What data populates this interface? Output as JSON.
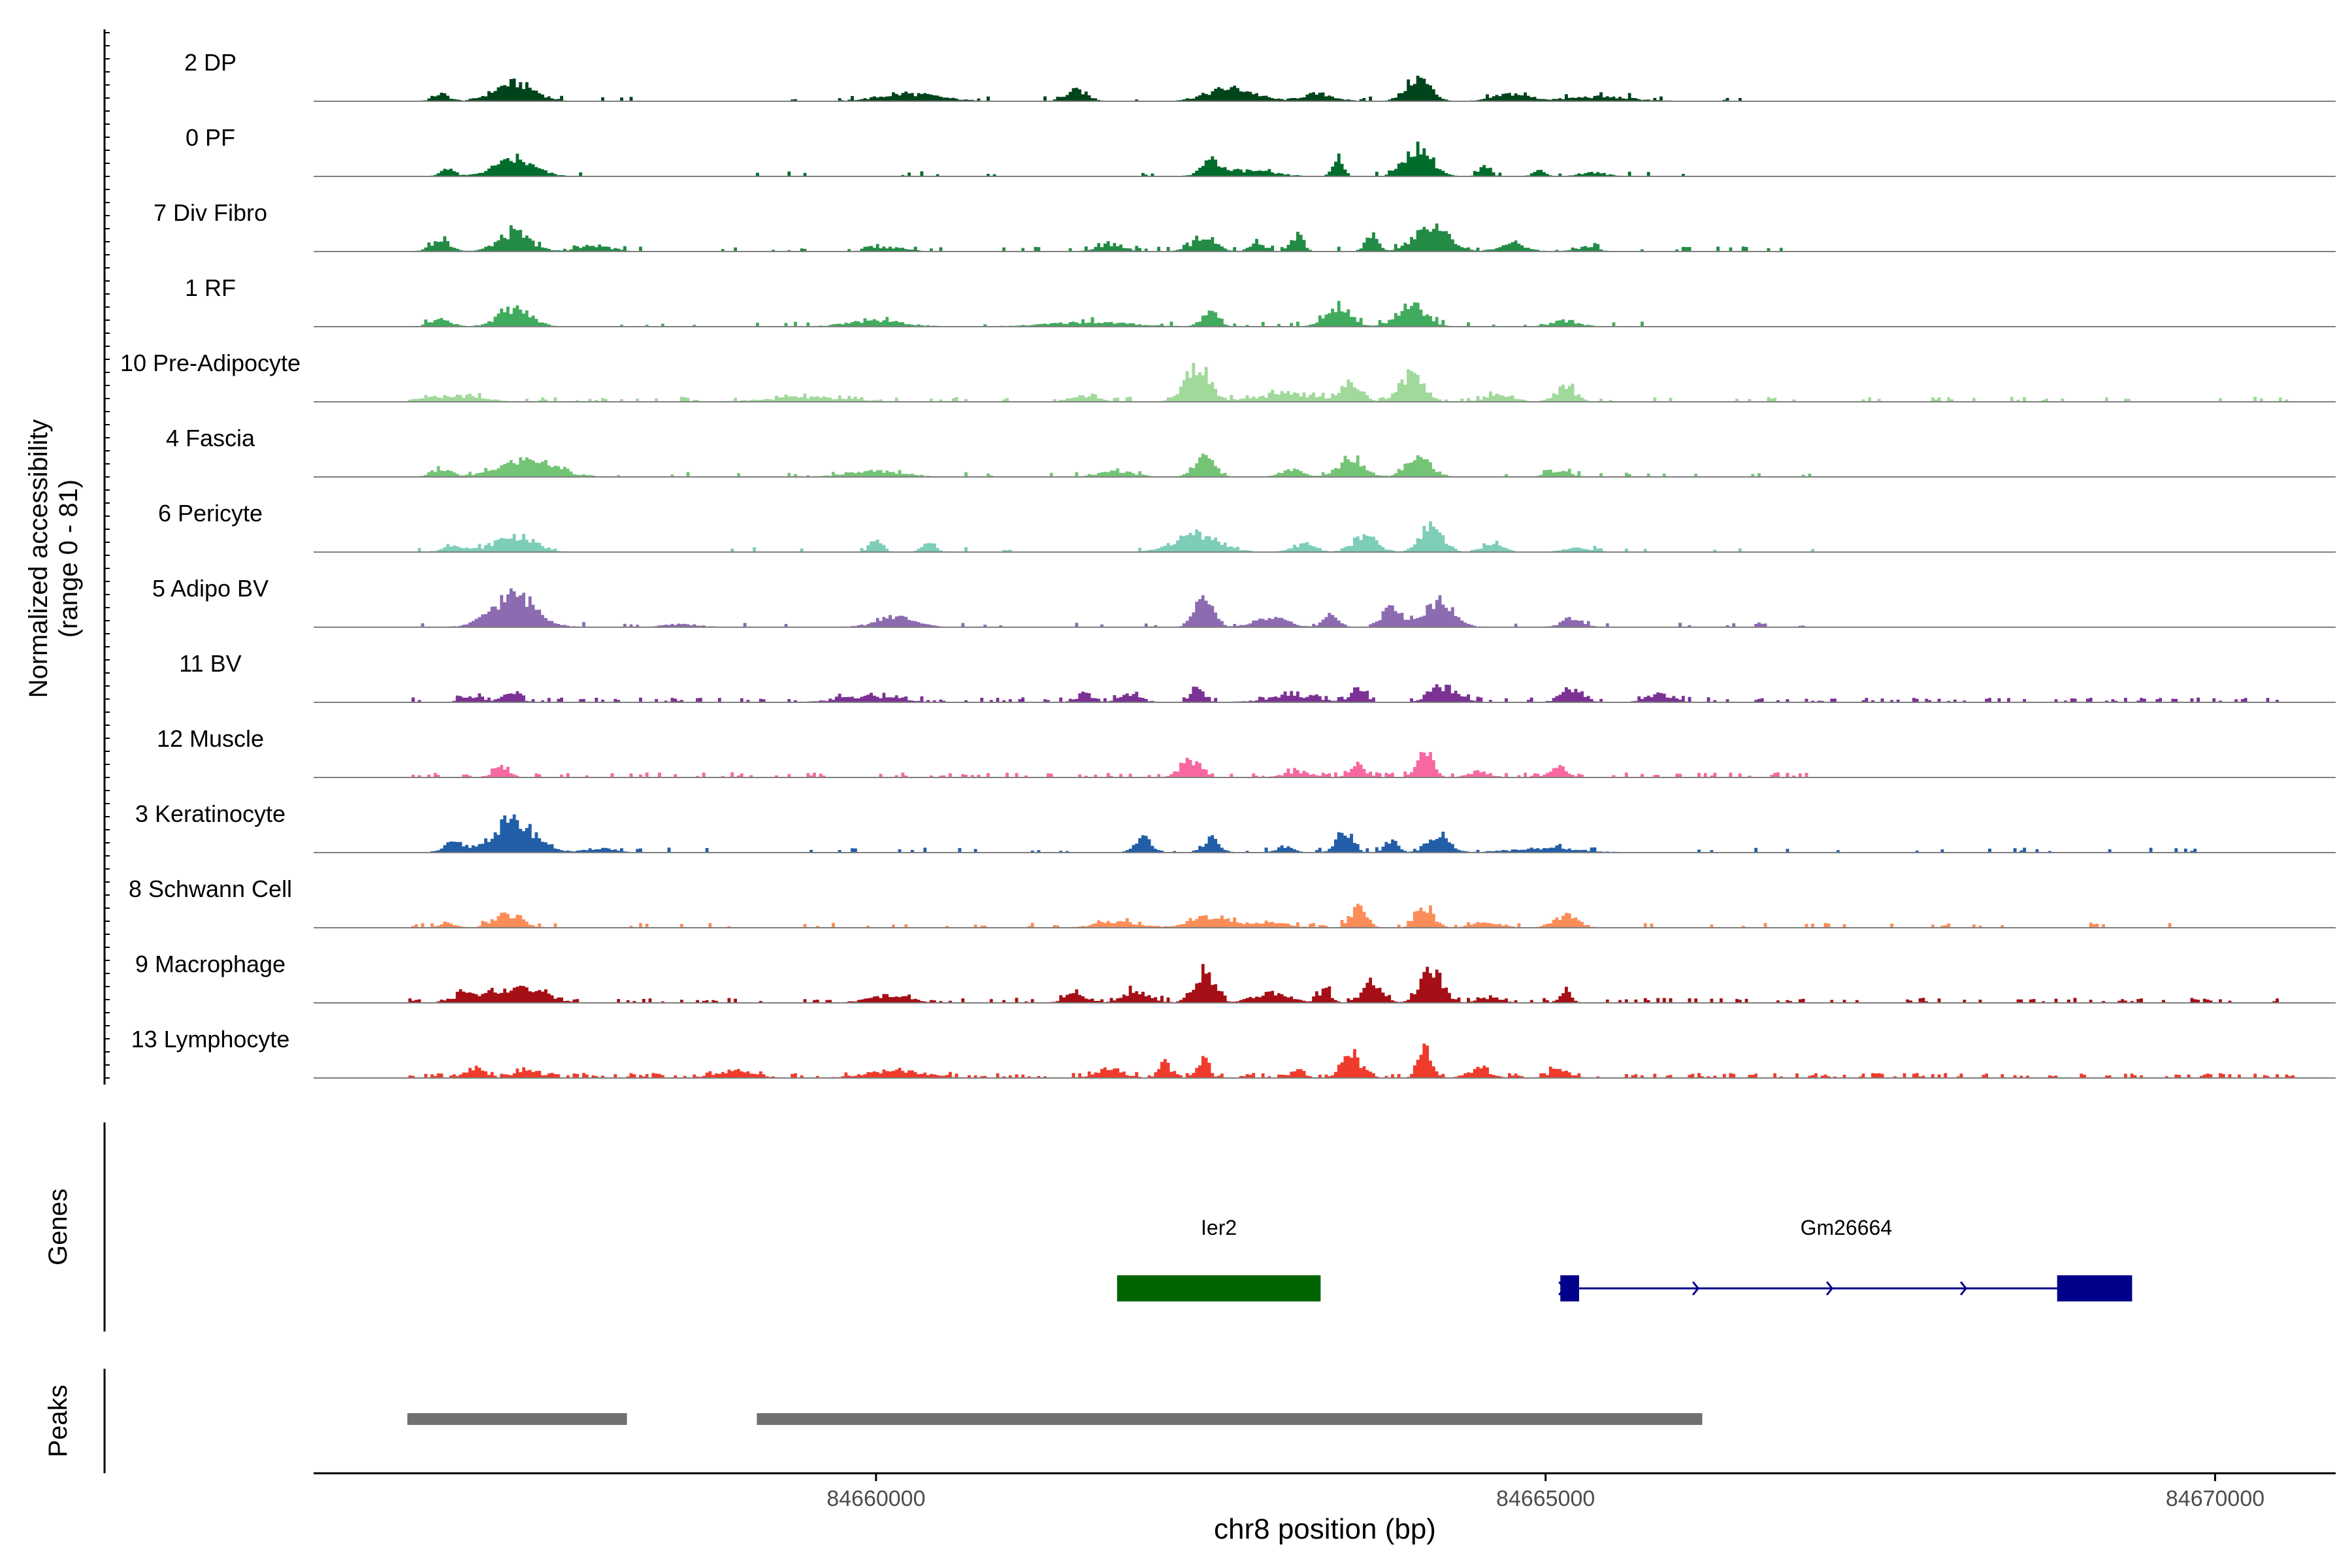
{
  "chart_data": {
    "type": "area",
    "region": "chr8",
    "xlabel": "chr8 position (bp)",
    "ylabel": "Normalized accessibility",
    "ylabel_range": "(range 0 - 81)",
    "xlim": [
      84655800,
      84670900
    ],
    "ylim": [
      0,
      81
    ],
    "x_ticks": [
      84660000,
      84665000,
      84670000
    ],
    "x_tick_labels": [
      "84660000",
      "84665000",
      "84670000"
    ],
    "genes_label": "Genes",
    "peaks_label": "Peaks",
    "series": [
      {
        "name": "2 DP",
        "color": "#00441b",
        "noise": 0.07,
        "noise_range": [
          84656500,
          84667000
        ],
        "peaks": [
          [
            84656500,
            84657000,
            10,
            "0.12"
          ],
          [
            84657000,
            84657600,
            25,
            "0.25"
          ],
          [
            84659800,
            84660700,
            10,
            "0.25"
          ],
          [
            84661300,
            84661700,
            15,
            "0.2"
          ],
          [
            84662300,
            84663000,
            18,
            "0.25"
          ],
          [
            84663000,
            84663600,
            10,
            "0.2"
          ],
          [
            84663800,
            84664300,
            32,
            "0.18"
          ],
          [
            84664500,
            84665000,
            10,
            "0.25"
          ],
          [
            84665000,
            84665800,
            6,
            "0.3"
          ]
        ]
      },
      {
        "name": "0 PF",
        "color": "#006d2c",
        "noise": 0.05,
        "noise_range": [
          84656500,
          84667000
        ],
        "peaks": [
          [
            84656600,
            84657000,
            12,
            "0.12"
          ],
          [
            84657000,
            84657600,
            22,
            "0.25"
          ],
          [
            84662300,
            84662700,
            22,
            "0.15"
          ],
          [
            84662500,
            84663000,
            8,
            "0.4"
          ],
          [
            84663300,
            84663600,
            25,
            "0.12"
          ],
          [
            84663800,
            84664300,
            40,
            "0.2"
          ],
          [
            84664400,
            84664700,
            14,
            "0.12"
          ],
          [
            84664800,
            84665100,
            8,
            "0.15"
          ],
          [
            84665100,
            84665600,
            5,
            "0.2"
          ]
        ]
      },
      {
        "name": "7 Div Fibro",
        "color": "#238b45",
        "noise": 0.2,
        "noise_range": [
          84656500,
          84667000
        ],
        "peaks": [
          [
            84656500,
            84657000,
            15,
            "0.15"
          ],
          [
            84657000,
            84657600,
            25,
            "0.2"
          ],
          [
            84657600,
            84658200,
            8,
            "0.2"
          ],
          [
            84659800,
            84660400,
            6,
            "0.2"
          ],
          [
            84661500,
            84662000,
            10,
            "0.2"
          ],
          [
            84662200,
            84662700,
            20,
            "0.18"
          ],
          [
            84662700,
            84663000,
            14,
            "0.18"
          ],
          [
            84663000,
            84663300,
            24,
            "0.1"
          ],
          [
            84663500,
            84663900,
            22,
            "0.12"
          ],
          [
            84663800,
            84664500,
            34,
            "0.18"
          ],
          [
            84664500,
            84665000,
            10,
            "0.2"
          ],
          [
            84665100,
            84665500,
            6,
            "0.2"
          ]
        ]
      },
      {
        "name": "1 RF",
        "color": "#41ab5d",
        "noise": 0.06,
        "noise_range": [
          84656500,
          84667000
        ],
        "peaks": [
          [
            84656500,
            84657000,
            10,
            "0.15"
          ],
          [
            84657000,
            84657600,
            25,
            "0.2"
          ],
          [
            84659600,
            84660400,
            8,
            "0.25"
          ],
          [
            84661000,
            84662200,
            6,
            "0.25"
          ],
          [
            84662300,
            84662700,
            22,
            "0.15"
          ],
          [
            84663200,
            84663700,
            28,
            "0.18"
          ],
          [
            84663700,
            84664300,
            30,
            "0.18"
          ],
          [
            84664900,
            84665400,
            8,
            "0.2"
          ]
        ]
      },
      {
        "name": "10 Pre-Adipocyte",
        "color": "#a1d99b",
        "noise": 0.18,
        "noise_range": [
          84656500,
          84670600
        ],
        "peaks": [
          [
            84656500,
            84657200,
            8,
            "0.3"
          ],
          [
            84659000,
            84660000,
            6,
            "0.3"
          ],
          [
            84661300,
            84661800,
            8,
            "0.2"
          ],
          [
            84662100,
            84662700,
            50,
            "0.15"
          ],
          [
            84662700,
            84663500,
            10,
            "0.3"
          ],
          [
            84663300,
            84663800,
            24,
            "0.15"
          ],
          [
            84663700,
            84664300,
            38,
            "0.15"
          ],
          [
            84664400,
            84664900,
            10,
            "0.2"
          ],
          [
            84664900,
            84665400,
            20,
            "0.15"
          ]
        ]
      },
      {
        "name": "4 Fascia",
        "color": "#74c476",
        "noise": 0.1,
        "noise_range": [
          84656500,
          84667000
        ],
        "peaks": [
          [
            84656500,
            84657000,
            10,
            "0.15"
          ],
          [
            84657000,
            84657800,
            24,
            "0.25"
          ],
          [
            84659600,
            84660400,
            8,
            "0.25"
          ],
          [
            84661500,
            84662100,
            8,
            "0.2"
          ],
          [
            84662200,
            84662700,
            28,
            "0.15"
          ],
          [
            84662900,
            84663300,
            10,
            "0.2"
          ],
          [
            84663300,
            84663800,
            28,
            "0.18"
          ],
          [
            84663800,
            84664300,
            30,
            "0.18"
          ],
          [
            84664900,
            84665300,
            8,
            "0.2"
          ]
        ]
      },
      {
        "name": "6 Pericyte",
        "color": "#7dcdb8",
        "noise": 0.08,
        "noise_range": [
          84656500,
          84667000
        ],
        "peaks": [
          [
            84656600,
            84657100,
            10,
            "0.15"
          ],
          [
            84657000,
            84657600,
            22,
            "0.25"
          ],
          [
            84659800,
            84660200,
            16,
            "0.12"
          ],
          [
            84660200,
            84660600,
            14,
            "0.12"
          ],
          [
            84662000,
            84662800,
            25,
            "0.2"
          ],
          [
            84663000,
            84663400,
            12,
            "0.2"
          ],
          [
            84663400,
            84663900,
            22,
            "0.18"
          ],
          [
            84663900,
            84664400,
            38,
            "0.16"
          ],
          [
            84664400,
            84664800,
            10,
            "0.2"
          ],
          [
            84665000,
            84665500,
            6,
            "0.2"
          ]
        ]
      },
      {
        "name": "5 Adipo BV",
        "color": "#8c6bb1",
        "noise": 0.08,
        "noise_range": [
          84656500,
          84667000
        ],
        "peaks": [
          [
            84656900,
            84657700,
            45,
            "0.2"
          ],
          [
            84658300,
            84658800,
            4,
            "0.25"
          ],
          [
            84659800,
            84660500,
            14,
            "0.2"
          ],
          [
            84662200,
            84662700,
            38,
            "0.14"
          ],
          [
            84662700,
            84663200,
            12,
            "0.25"
          ],
          [
            84663200,
            84663600,
            14,
            "0.15"
          ],
          [
            84663600,
            84664100,
            26,
            "0.15"
          ],
          [
            84663900,
            84664500,
            34,
            "0.18"
          ],
          [
            84665000,
            84665400,
            10,
            "0.2"
          ]
        ]
      },
      {
        "name": "11 BV",
        "color": "#7b3294",
        "noise": 0.32,
        "noise_range": [
          84656500,
          84670600
        ],
        "peaks": [
          [
            84656800,
            84657200,
            8,
            "0.2"
          ],
          [
            84657100,
            84657500,
            16,
            "0.12"
          ],
          [
            84659600,
            84660300,
            8,
            "0.3"
          ],
          [
            84661400,
            84661700,
            8,
            "0.2"
          ],
          [
            84661700,
            84662100,
            10,
            "0.2"
          ],
          [
            84662200,
            84662600,
            18,
            "0.12"
          ],
          [
            84662800,
            84663400,
            8,
            "0.3"
          ],
          [
            84663400,
            84663800,
            22,
            "0.12"
          ],
          [
            84664000,
            84664500,
            18,
            "0.2"
          ],
          [
            84665000,
            84665400,
            16,
            "0.2"
          ],
          [
            84665600,
            84666100,
            10,
            "0.2"
          ]
        ]
      },
      {
        "name": "12 Muscle",
        "color": "#f768a1",
        "noise": 0.24,
        "noise_range": [
          84656500,
          84667000
        ],
        "peaks": [
          [
            84657000,
            84657400,
            14,
            "0.15"
          ],
          [
            84662100,
            84662600,
            24,
            "0.15"
          ],
          [
            84662900,
            84663400,
            8,
            "0.2"
          ],
          [
            84663400,
            84663800,
            14,
            "0.15"
          ],
          [
            84663900,
            84664300,
            38,
            "0.15"
          ],
          [
            84664300,
            84664700,
            8,
            "0.2"
          ],
          [
            84664900,
            84665300,
            14,
            "0.15"
          ]
        ]
      },
      {
        "name": "3 Keratinocyte",
        "color": "#225ea8",
        "noise": 0.1,
        "noise_range": [
          84656500,
          84670600
        ],
        "peaks": [
          [
            84656600,
            84657100,
            12,
            "0.15"
          ],
          [
            84656900,
            84657700,
            42,
            "0.2"
          ],
          [
            84657700,
            84658200,
            6,
            "0.2"
          ],
          [
            84661800,
            84662200,
            22,
            "0.15"
          ],
          [
            84662300,
            84662700,
            18,
            "0.15"
          ],
          [
            84662900,
            84663200,
            8,
            "0.2"
          ],
          [
            84663300,
            84663700,
            30,
            "0.15"
          ],
          [
            84663700,
            84664000,
            18,
            "0.15"
          ],
          [
            84664000,
            84664400,
            26,
            "0.2"
          ],
          [
            84664600,
            84665400,
            6,
            "0.3"
          ]
        ]
      },
      {
        "name": "8 Schwann Cell",
        "color": "#fc8d59",
        "noise": 0.14,
        "noise_range": [
          84656500,
          84670600
        ],
        "peaks": [
          [
            84656600,
            84657000,
            6,
            "0.15"
          ],
          [
            84657000,
            84657500,
            18,
            "0.2"
          ],
          [
            84661500,
            84662100,
            8,
            "0.25"
          ],
          [
            84662200,
            84662800,
            16,
            "0.25"
          ],
          [
            84662700,
            84663200,
            8,
            "0.25"
          ],
          [
            84663400,
            84663800,
            28,
            "0.15"
          ],
          [
            84663900,
            84664300,
            28,
            "0.16"
          ],
          [
            84664300,
            84664800,
            8,
            "0.2"
          ],
          [
            84664900,
            84665400,
            16,
            "0.18"
          ]
        ]
      },
      {
        "name": "9 Macrophage",
        "color": "#a50f15",
        "noise": 0.24,
        "noise_range": [
          84656500,
          84670600
        ],
        "peaks": [
          [
            84656700,
            84657200,
            12,
            "0.2"
          ],
          [
            84657000,
            84657700,
            20,
            "0.25"
          ],
          [
            84659800,
            84660400,
            10,
            "0.25"
          ],
          [
            84661300,
            84661700,
            12,
            "0.2"
          ],
          [
            84661700,
            84662200,
            16,
            "0.2"
          ],
          [
            84662200,
            84662700,
            40,
            "0.15"
          ],
          [
            84662700,
            84663200,
            14,
            "0.25"
          ],
          [
            84663200,
            84663500,
            18,
            "0.15"
          ],
          [
            84663500,
            84663900,
            26,
            "0.18"
          ],
          [
            84663900,
            84664400,
            44,
            "0.16"
          ],
          [
            84664400,
            84664800,
            8,
            "0.2"
          ],
          [
            84665000,
            84665300,
            18,
            "0.12"
          ]
        ]
      },
      {
        "name": "13 Lymphocyte",
        "color": "#ef3b2c",
        "noise": 0.34,
        "noise_range": [
          84656500,
          84670600
        ],
        "peaks": [
          [
            84656800,
            84657200,
            10,
            "0.2"
          ],
          [
            84657200,
            84657600,
            12,
            "0.2"
          ],
          [
            84658600,
            84659300,
            10,
            "0.2"
          ],
          [
            84659800,
            84660500,
            10,
            "0.3"
          ],
          [
            84661500,
            84662000,
            12,
            "0.2"
          ],
          [
            84662000,
            84662300,
            22,
            "0.12"
          ],
          [
            84662300,
            84662600,
            28,
            "0.1"
          ],
          [
            84663000,
            84663300,
            14,
            "0.15"
          ],
          [
            84663300,
            84663800,
            30,
            "0.15"
          ],
          [
            84663900,
            84664300,
            42,
            "0.13"
          ],
          [
            84664300,
            84664700,
            12,
            "0.2"
          ],
          [
            84664900,
            84665300,
            10,
            "0.2"
          ]
        ]
      }
    ],
    "genes": [
      {
        "name": "Ier2",
        "start": 84661800,
        "end": 84663320,
        "color": "#006400",
        "exons": [
          [
            84661800,
            84663320
          ]
        ],
        "arrows": []
      },
      {
        "name": "Gm26664",
        "start": 84665110,
        "end": 84669380,
        "color": "#00008b",
        "exons": [
          [
            84665110,
            84665250
          ],
          [
            84668820,
            84669380
          ]
        ],
        "arrows": [
          84665110,
          84666110,
          84667110,
          84668110
        ]
      }
    ],
    "peaks_regions": [
      [
        84656500,
        84658140
      ],
      [
        84659110,
        84666170
      ]
    ],
    "peaks_color": "#707070"
  }
}
